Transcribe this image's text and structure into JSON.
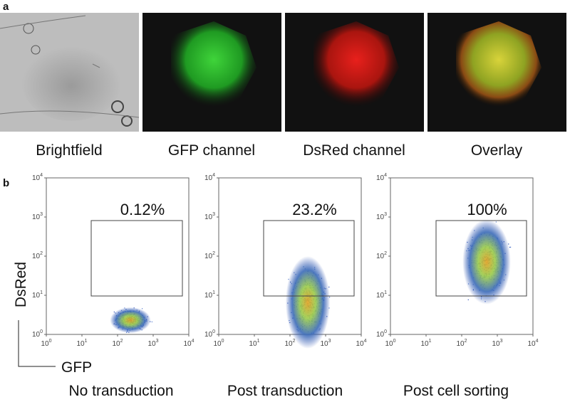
{
  "panel_a": {
    "letter": "a",
    "captions": [
      "Brightfield",
      "GFP channel",
      "DsRed channel",
      "Overlay"
    ]
  },
  "panel_b": {
    "letter": "b",
    "y_axis_label": "DsRed",
    "x_axis_label": "GFP",
    "tick_base": "10",
    "tick_exponents": [
      "0",
      "1",
      "2",
      "3",
      "4"
    ],
    "plots": [
      {
        "gate_label": "0.12%",
        "caption": "No transduction"
      },
      {
        "gate_label": "23.2%",
        "caption": "Post transduction"
      },
      {
        "gate_label": "100%",
        "caption": "Post cell sorting"
      }
    ]
  }
}
